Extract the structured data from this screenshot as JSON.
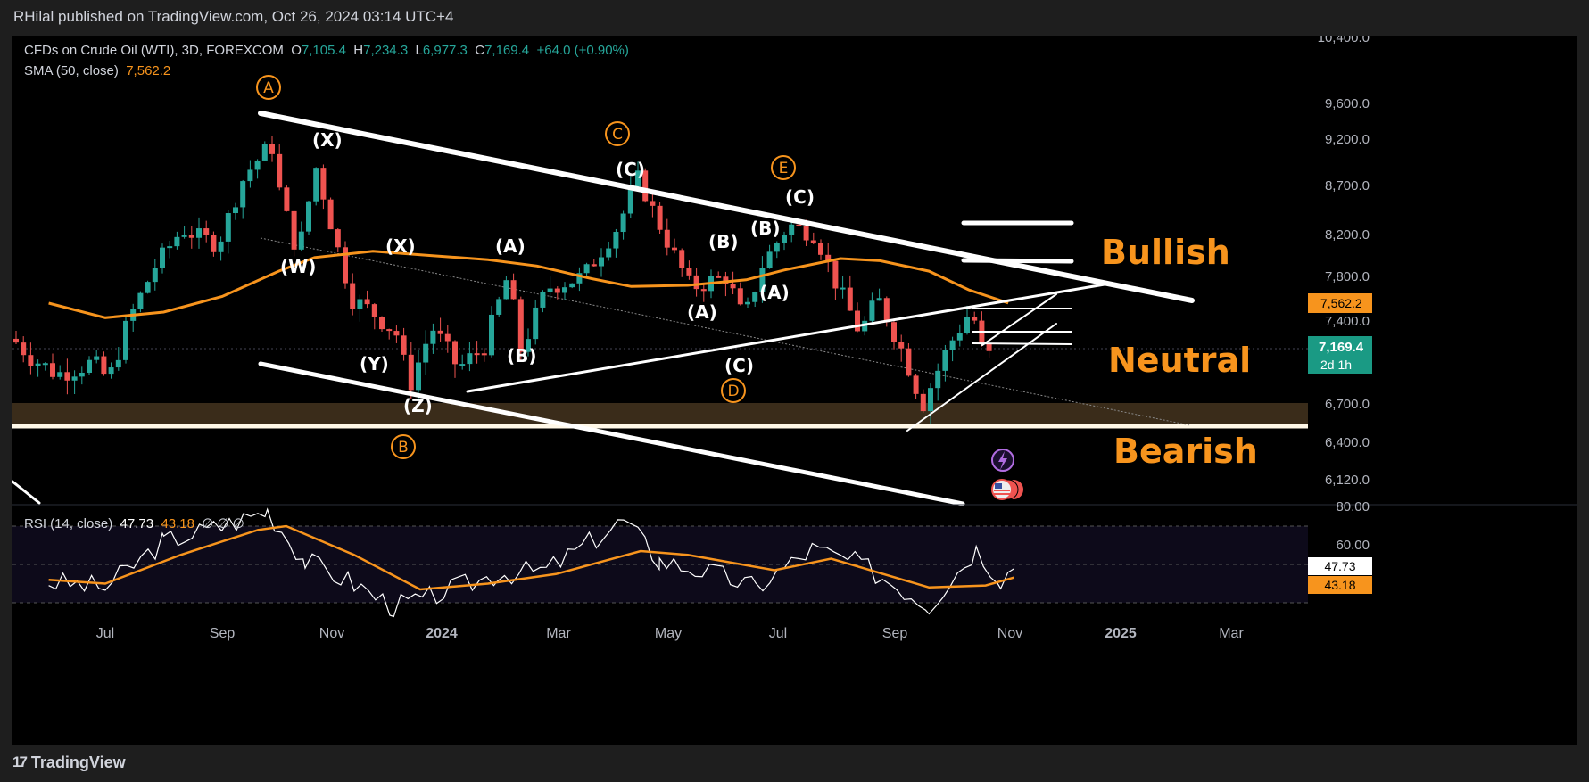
{
  "header": {
    "publisher": "RHilal published on TradingView.com, Oct 26, 2024 03:14 UTC+4"
  },
  "legend": {
    "symbol": "CFDs on Crude Oil (WTI), 3D, FOREXCOM",
    "open_label": "O",
    "open": "7,105.4",
    "high_label": "H",
    "high": "7,234.3",
    "low_label": "L",
    "low": "6,977.3",
    "close_label": "C",
    "close": "7,169.4",
    "change": "+64.0 (+0.90%)",
    "sma_label": "SMA (50, close)",
    "sma_value": "7,562.2",
    "rsi_label": "RSI (14, close)",
    "rsi_value": "47.73",
    "rsi_ma_value": "43.18",
    "rsi_placeholders": "∅ ∅ ∅"
  },
  "footer": {
    "brand": "TradingView",
    "logo": "17"
  },
  "colors": {
    "up": "#26a69a",
    "down": "#ef5350",
    "sma": "#f7941d",
    "rsi": "#ffffff",
    "zone": "#3a2c1a",
    "accent": "#f7941d"
  },
  "chart_data": {
    "type": "candlestick",
    "title": "CFDs on Crude Oil (WTI), 3D, FOREXCOM",
    "x_ticks": [
      "Jul",
      "Sep",
      "Nov",
      "2024",
      "Mar",
      "May",
      "Jul",
      "Sep",
      "Nov",
      "2025",
      "Mar"
    ],
    "y_ticks": [
      "10,400.0",
      "9,600.0",
      "9,200.0",
      "8,700.0",
      "8,200.0",
      "7,800.0",
      "7,400.0",
      "6,700.0",
      "6,400.0",
      "6,120.0"
    ],
    "price_labels": {
      "sma": "7,562.2",
      "last": "7,169.4",
      "countdown": "2d 1h"
    },
    "series": [
      {
        "name": "SMA (50, close)",
        "values": [
          [
            "2023-06-01",
            7560
          ],
          [
            "2023-07-01",
            7430
          ],
          [
            "2023-08-01",
            7480
          ],
          [
            "2023-09-01",
            7620
          ],
          [
            "2023-10-01",
            7850
          ],
          [
            "2023-10-20",
            7980
          ],
          [
            "2023-11-20",
            8040
          ],
          [
            "2023-12-20",
            8000
          ],
          [
            "2024-01-20",
            7960
          ],
          [
            "2024-02-15",
            7900
          ],
          [
            "2024-03-15",
            7780
          ],
          [
            "2024-04-05",
            7710
          ],
          [
            "2024-05-05",
            7720
          ],
          [
            "2024-06-05",
            7770
          ],
          [
            "2024-06-25",
            7860
          ],
          [
            "2024-07-25",
            7970
          ],
          [
            "2024-08-15",
            7950
          ],
          [
            "2024-09-10",
            7850
          ],
          [
            "2024-10-01",
            7680
          ],
          [
            "2024-10-22",
            7562
          ]
        ]
      },
      {
        "name": "RSI (14, close)",
        "values": [
          [
            "2023-06-01",
            41
          ],
          [
            "2023-07-01",
            38
          ],
          [
            "2023-08-01",
            62
          ],
          [
            "2023-09-01",
            70
          ],
          [
            "2023-09-25",
            78
          ],
          [
            "2023-10-15",
            52
          ],
          [
            "2023-11-10",
            40
          ],
          [
            "2023-12-01",
            28
          ],
          [
            "2023-12-20",
            33
          ],
          [
            "2024-01-25",
            45
          ],
          [
            "2024-02-20",
            47
          ],
          [
            "2024-04-01",
            73
          ],
          [
            "2024-04-20",
            52
          ],
          [
            "2024-05-20",
            45
          ],
          [
            "2024-06-10",
            38
          ],
          [
            "2024-07-10",
            58
          ],
          [
            "2024-08-05",
            50
          ],
          [
            "2024-09-10",
            29
          ],
          [
            "2024-10-05",
            58
          ],
          [
            "2024-10-18",
            43
          ],
          [
            "2024-10-25",
            47.73
          ]
        ]
      },
      {
        "name": "RSI MA",
        "values": [
          [
            "2023-06-01",
            42
          ],
          [
            "2023-07-01",
            40
          ],
          [
            "2023-08-10",
            55
          ],
          [
            "2023-09-20",
            68
          ],
          [
            "2023-10-05",
            70
          ],
          [
            "2023-11-10",
            55
          ],
          [
            "2023-12-15",
            37
          ],
          [
            "2024-01-20",
            40
          ],
          [
            "2024-02-25",
            45
          ],
          [
            "2024-04-10",
            57
          ],
          [
            "2024-05-05",
            55
          ],
          [
            "2024-06-20",
            47
          ],
          [
            "2024-07-20",
            53
          ],
          [
            "2024-09-10",
            38
          ],
          [
            "2024-10-10",
            39
          ],
          [
            "2024-10-25",
            43.18
          ]
        ]
      }
    ],
    "rsi_ticks": [
      "80.00",
      "60.00"
    ],
    "rsi_labels": {
      "rsi": "47.73",
      "ma": "43.18"
    },
    "wave_labels_white": [
      "(X)",
      "(W)",
      "(X)",
      "(Y)",
      "(Z)",
      "(A)",
      "(B)",
      "(C)",
      "(A)",
      "(B)",
      "(A)",
      "(B)",
      "(C)",
      "(C)"
    ],
    "wave_labels_circled": [
      "A",
      "B",
      "C",
      "D",
      "E"
    ],
    "zone_labels": [
      "Bullish",
      "Neutral",
      "Bearish"
    ]
  }
}
